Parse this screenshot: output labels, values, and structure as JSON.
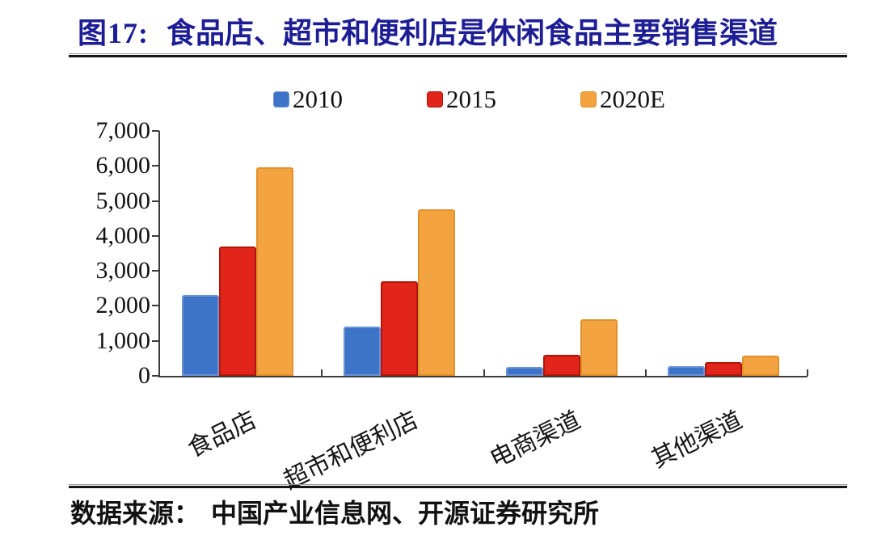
{
  "header": {
    "figure_label": "图17:",
    "title": "食品店、超市和便利店是休闲食品主要销售渠道"
  },
  "footer": {
    "source_label": "数据来源：",
    "source_text": "中国产业信息网、开源证券研究所"
  },
  "colors": {
    "title_navy": "#1D1D96",
    "axis": "#3C3C3C",
    "series_blue": "#3D74C8",
    "series_red": "#E1251B",
    "series_orange": "#F3A440"
  },
  "chart_data": {
    "type": "bar",
    "title": "图17: 食品店、超市和便利店是休闲食品主要销售渠道",
    "categories": [
      "食品店",
      "超市和便利店",
      "电商渠道",
      "其他渠道"
    ],
    "series": [
      {
        "name": "2010",
        "color": "#3D74C8",
        "border": "#6A93D8",
        "values": [
          2300,
          1400,
          250,
          280
        ]
      },
      {
        "name": "2015",
        "color": "#E1251B",
        "border": "#B21509",
        "values": [
          3700,
          2700,
          600,
          390
        ]
      },
      {
        "name": "2020E",
        "color": "#F3A440",
        "border": "#E1912A",
        "values": [
          5950,
          4750,
          1620,
          580
        ]
      }
    ],
    "xlabel": "",
    "ylabel": "",
    "ylim": [
      0,
      7000
    ],
    "ytick_step": 1000,
    "ytick_labels": [
      "0",
      "1,000",
      "2,000",
      "3,000",
      "4,000",
      "5,000",
      "6,000",
      "7,000"
    ],
    "legend_position": "top-center",
    "grid": false
  }
}
